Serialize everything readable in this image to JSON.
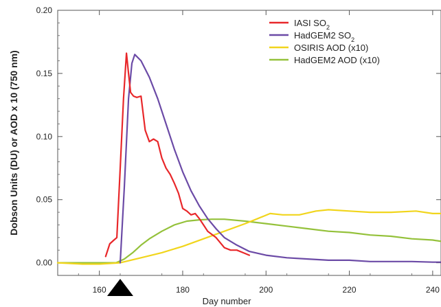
{
  "chart_data": {
    "type": "line",
    "xlabel": "Day number",
    "ylabel": "Dobson Units (DU) or AOD x 10 (750 nm)",
    "xlim": [
      150,
      242
    ],
    "ylim": [
      -0.01,
      0.2
    ],
    "xticks": [
      160,
      180,
      200,
      220,
      240
    ],
    "xtick_labels": [
      "160",
      "180",
      "200",
      "220",
      "240"
    ],
    "yticks": [
      0.0,
      0.05,
      0.1,
      0.15,
      0.2
    ],
    "ytick_labels": [
      "0.00",
      "0.05",
      "0.10",
      "0.15",
      "0.20"
    ],
    "grid": false,
    "legend_position": "top-right",
    "marker": {
      "type": "triangle",
      "x": 165
    },
    "series": [
      {
        "name": "IASI SO",
        "name_sub": "2",
        "color": "#e8272a",
        "x": [
          161.5,
          162.5,
          163.5,
          164.2,
          165.0,
          165.8,
          166.5,
          167.0,
          167.5,
          168.2,
          169.0,
          170.0,
          171.0,
          172.0,
          173.0,
          174.0,
          175.0,
          176.0,
          177.0,
          178.0,
          179.0,
          180.0,
          181.0,
          182.0,
          183.0,
          184.0,
          185.0,
          186.0,
          188.0,
          190.0,
          191.5,
          193.0,
          194.5,
          196.0
        ],
        "y": [
          0.005,
          0.015,
          0.018,
          0.02,
          0.075,
          0.13,
          0.166,
          0.15,
          0.135,
          0.132,
          0.131,
          0.132,
          0.105,
          0.096,
          0.098,
          0.096,
          0.083,
          0.075,
          0.07,
          0.063,
          0.055,
          0.043,
          0.041,
          0.038,
          0.039,
          0.035,
          0.03,
          0.025,
          0.02,
          0.012,
          0.01,
          0.01,
          0.008,
          0.006
        ]
      },
      {
        "name": "HadGEM2 SO",
        "name_sub": "2",
        "color": "#6b4aa6",
        "x": [
          165.0,
          166.0,
          167.0,
          167.8,
          168.5,
          170.0,
          172.0,
          174.0,
          176.0,
          178.0,
          180.0,
          182.0,
          184.0,
          186.0,
          188.0,
          190.0,
          193.0,
          196.0,
          200.0,
          205.0,
          210.0,
          215.0,
          220.0,
          225.0,
          230.0,
          235.0,
          240.0,
          242.0
        ],
        "y": [
          0.0,
          0.06,
          0.13,
          0.158,
          0.165,
          0.16,
          0.147,
          0.13,
          0.11,
          0.09,
          0.072,
          0.057,
          0.045,
          0.035,
          0.027,
          0.02,
          0.014,
          0.009,
          0.006,
          0.004,
          0.003,
          0.002,
          0.002,
          0.001,
          0.001,
          0.001,
          0.0005,
          0.0005
        ]
      },
      {
        "name": "OSIRIS AOD (x10)",
        "color": "#f1d51c",
        "x": [
          150.0,
          156.0,
          160.0,
          165.0,
          170.0,
          175.0,
          180.0,
          185.0,
          190.0,
          195.0,
          198.0,
          201.0,
          204.0,
          208.0,
          212.0,
          215.0,
          220.0,
          225.0,
          230.0,
          236.0,
          240.0,
          242.0
        ],
        "y": [
          0.0,
          -0.001,
          -0.001,
          0.0,
          0.004,
          0.008,
          0.013,
          0.019,
          0.025,
          0.031,
          0.035,
          0.039,
          0.038,
          0.038,
          0.041,
          0.042,
          0.041,
          0.04,
          0.04,
          0.041,
          0.039,
          0.039
        ]
      },
      {
        "name": "HadGEM2 AOD (x10)",
        "color": "#94c13a",
        "x": [
          150.0,
          160.0,
          164.0,
          166.0,
          168.0,
          170.0,
          172.0,
          175.0,
          178.0,
          181.0,
          184.0,
          187.0,
          190.0,
          195.0,
          200.0,
          205.0,
          210.0,
          215.0,
          220.0,
          225.0,
          230.0,
          235.0,
          240.0,
          242.0
        ],
        "y": [
          0.0,
          0.0,
          0.0,
          0.003,
          0.008,
          0.014,
          0.019,
          0.025,
          0.03,
          0.033,
          0.034,
          0.0345,
          0.0345,
          0.033,
          0.031,
          0.029,
          0.027,
          0.025,
          0.024,
          0.022,
          0.021,
          0.019,
          0.018,
          0.017
        ]
      }
    ]
  }
}
